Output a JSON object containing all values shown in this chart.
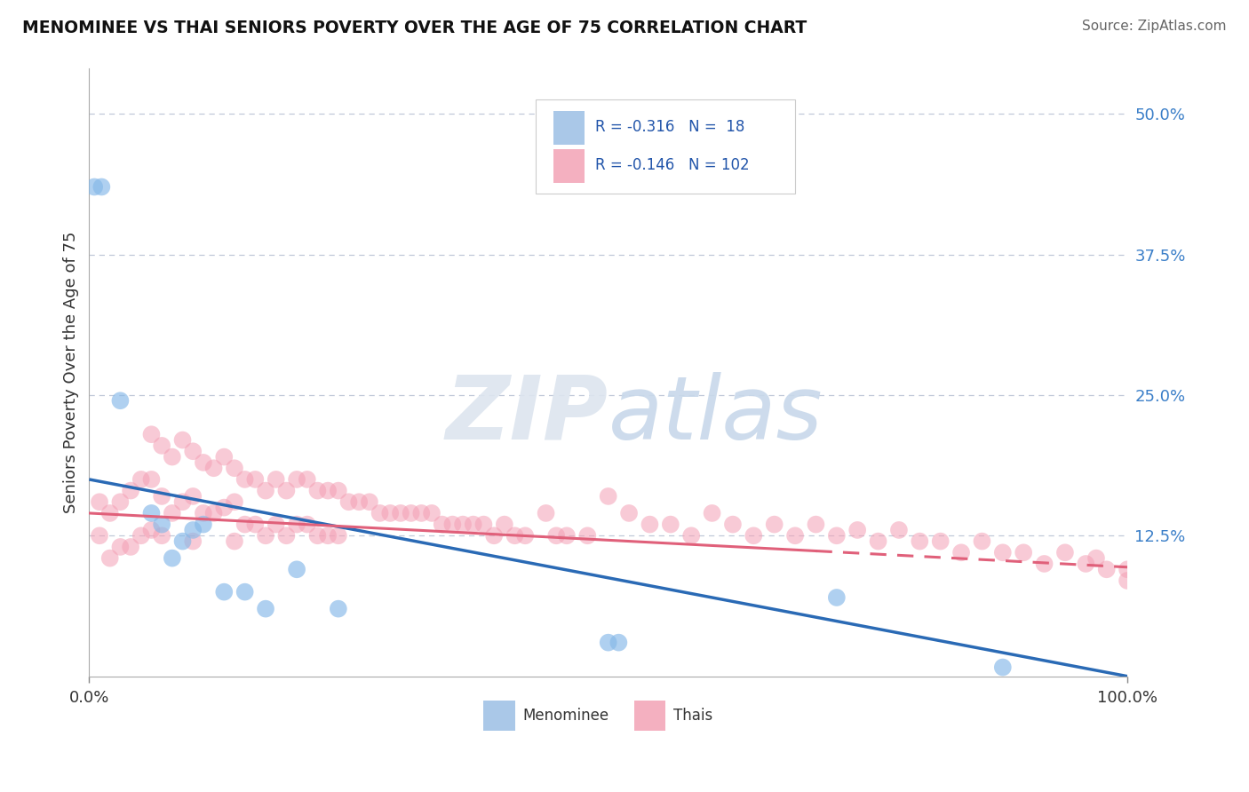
{
  "title": "MENOMINEE VS THAI SENIORS POVERTY OVER THE AGE OF 75 CORRELATION CHART",
  "source": "Source: ZipAtlas.com",
  "ylabel": "Seniors Poverty Over the Age of 75",
  "xlim": [
    0,
    1.0
  ],
  "ylim": [
    0,
    0.54
  ],
  "ytick_labels_right": [
    "50.0%",
    "37.5%",
    "25.0%",
    "12.5%"
  ],
  "ytick_positions_right": [
    0.5,
    0.375,
    0.25,
    0.125
  ],
  "menominee_color": "#85b8e8",
  "thai_color": "#f4a0b5",
  "menominee_line_color": "#2a6ab5",
  "thai_line_color": "#e0607a",
  "R_menominee": -0.316,
  "N_menominee": 18,
  "R_thai": -0.146,
  "N_thai": 102,
  "menominee_x": [
    0.005,
    0.012,
    0.03,
    0.06,
    0.07,
    0.08,
    0.09,
    0.1,
    0.11,
    0.13,
    0.15,
    0.17,
    0.2,
    0.24,
    0.5,
    0.51,
    0.72,
    0.88
  ],
  "menominee_y": [
    0.435,
    0.435,
    0.245,
    0.145,
    0.135,
    0.105,
    0.12,
    0.13,
    0.135,
    0.075,
    0.075,
    0.06,
    0.095,
    0.06,
    0.03,
    0.03,
    0.07,
    0.008
  ],
  "thai_x": [
    0.01,
    0.01,
    0.02,
    0.02,
    0.03,
    0.03,
    0.04,
    0.04,
    0.05,
    0.05,
    0.06,
    0.06,
    0.06,
    0.07,
    0.07,
    0.07,
    0.08,
    0.08,
    0.09,
    0.09,
    0.1,
    0.1,
    0.1,
    0.11,
    0.11,
    0.12,
    0.12,
    0.13,
    0.13,
    0.14,
    0.14,
    0.14,
    0.15,
    0.15,
    0.16,
    0.16,
    0.17,
    0.17,
    0.18,
    0.18,
    0.19,
    0.19,
    0.2,
    0.2,
    0.21,
    0.21,
    0.22,
    0.22,
    0.23,
    0.23,
    0.24,
    0.24,
    0.25,
    0.26,
    0.27,
    0.28,
    0.29,
    0.3,
    0.31,
    0.32,
    0.33,
    0.34,
    0.35,
    0.36,
    0.37,
    0.38,
    0.39,
    0.4,
    0.41,
    0.42,
    0.44,
    0.45,
    0.46,
    0.48,
    0.5,
    0.52,
    0.54,
    0.56,
    0.58,
    0.6,
    0.62,
    0.64,
    0.66,
    0.68,
    0.7,
    0.72,
    0.74,
    0.76,
    0.78,
    0.8,
    0.82,
    0.84,
    0.86,
    0.88,
    0.9,
    0.92,
    0.94,
    0.96,
    0.97,
    0.98,
    1.0,
    1.0
  ],
  "thai_y": [
    0.155,
    0.125,
    0.145,
    0.105,
    0.155,
    0.115,
    0.165,
    0.115,
    0.175,
    0.125,
    0.215,
    0.175,
    0.13,
    0.205,
    0.16,
    0.125,
    0.195,
    0.145,
    0.21,
    0.155,
    0.2,
    0.16,
    0.12,
    0.19,
    0.145,
    0.185,
    0.145,
    0.195,
    0.15,
    0.185,
    0.155,
    0.12,
    0.175,
    0.135,
    0.175,
    0.135,
    0.165,
    0.125,
    0.175,
    0.135,
    0.165,
    0.125,
    0.175,
    0.135,
    0.175,
    0.135,
    0.165,
    0.125,
    0.165,
    0.125,
    0.165,
    0.125,
    0.155,
    0.155,
    0.155,
    0.145,
    0.145,
    0.145,
    0.145,
    0.145,
    0.145,
    0.135,
    0.135,
    0.135,
    0.135,
    0.135,
    0.125,
    0.135,
    0.125,
    0.125,
    0.145,
    0.125,
    0.125,
    0.125,
    0.16,
    0.145,
    0.135,
    0.135,
    0.125,
    0.145,
    0.135,
    0.125,
    0.135,
    0.125,
    0.135,
    0.125,
    0.13,
    0.12,
    0.13,
    0.12,
    0.12,
    0.11,
    0.12,
    0.11,
    0.11,
    0.1,
    0.11,
    0.1,
    0.105,
    0.095,
    0.095,
    0.085
  ]
}
